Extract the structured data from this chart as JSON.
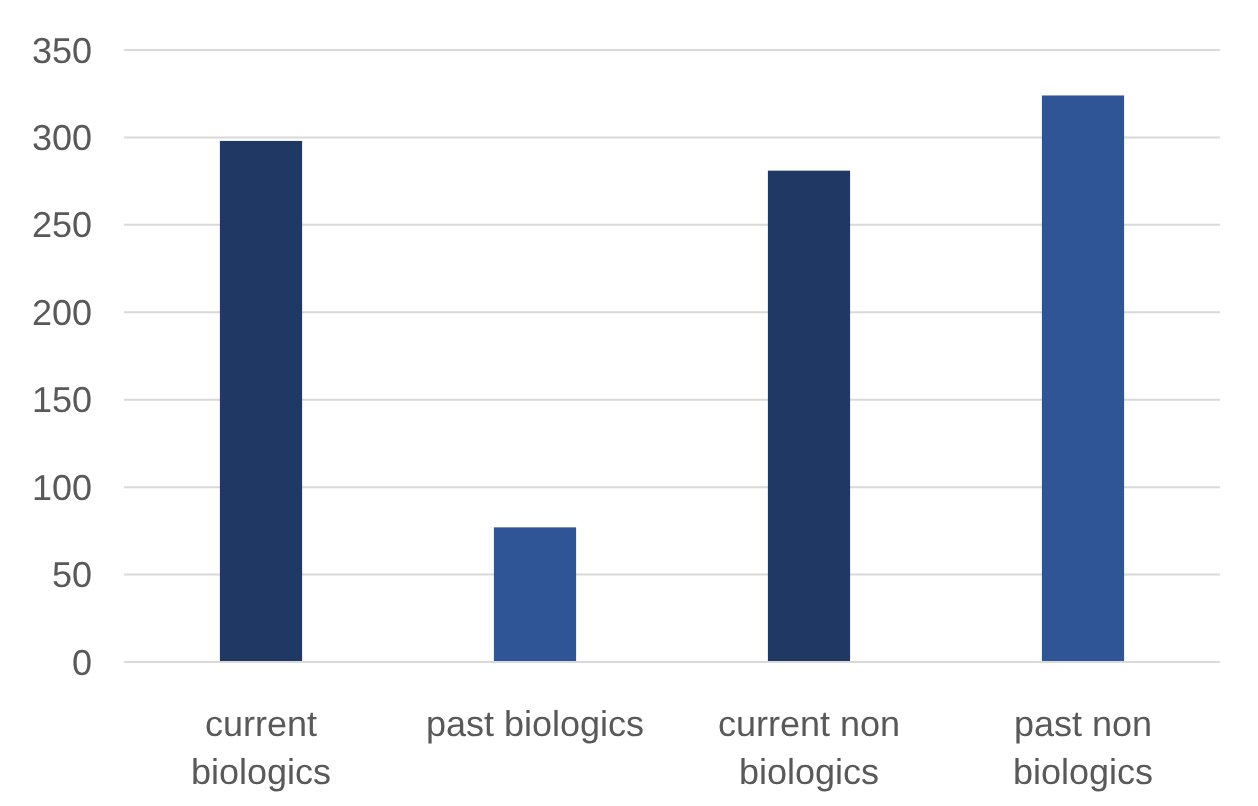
{
  "chart_data": {
    "type": "bar",
    "categories": [
      "current biologics",
      "past biologics",
      "current non biologics",
      "past non biologics"
    ],
    "values": [
      298,
      77,
      281,
      324
    ],
    "colors": [
      "#203864",
      "#2f5597",
      "#203864",
      "#2f5597"
    ],
    "ylim": [
      0,
      350
    ],
    "yticks": [
      0,
      50,
      100,
      150,
      200,
      250,
      300,
      350
    ],
    "grid": "y"
  }
}
